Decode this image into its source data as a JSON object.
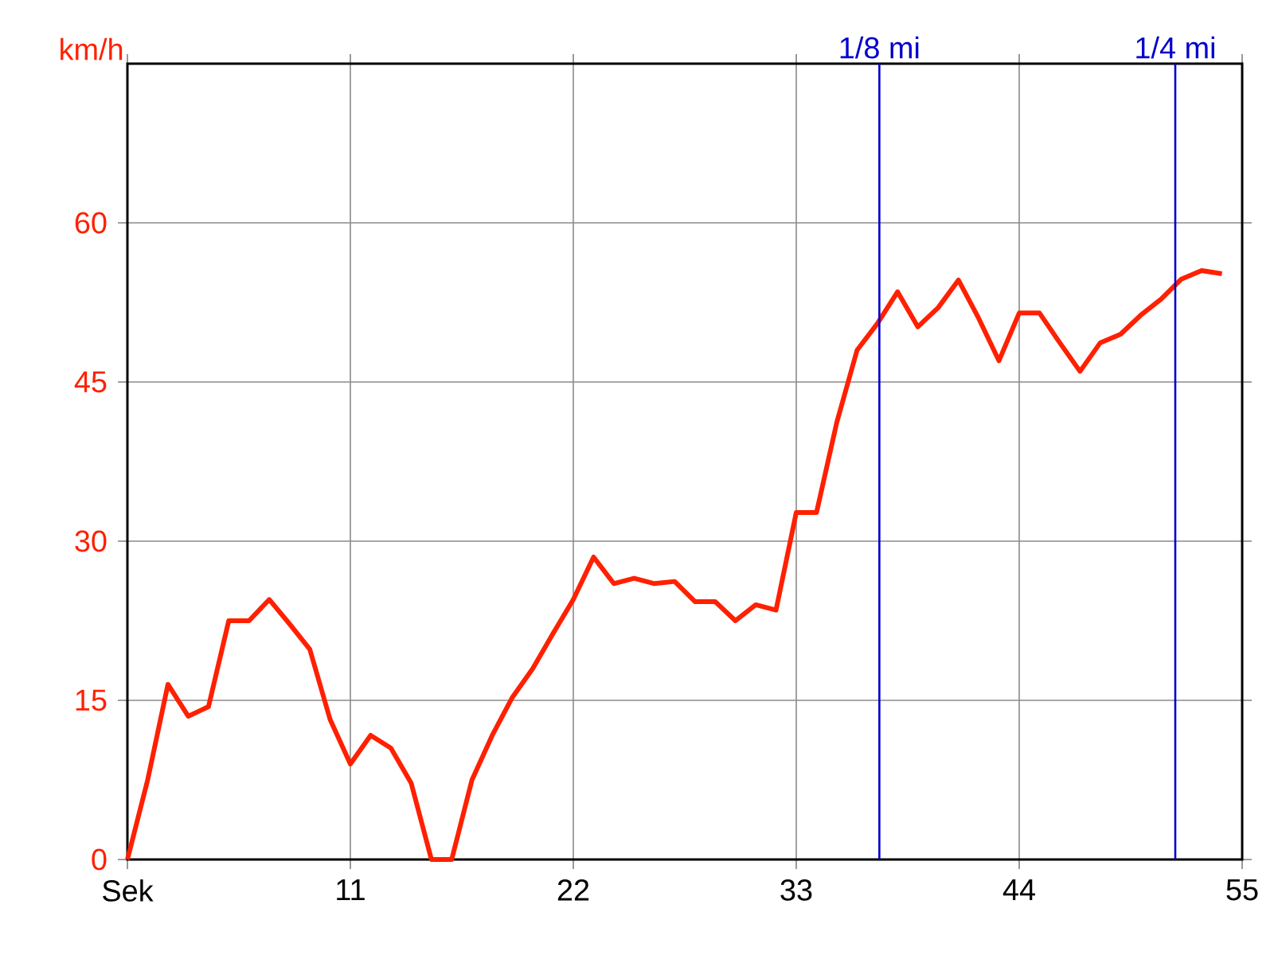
{
  "chart_data": {
    "type": "line",
    "ylabel": "km/h",
    "x": [
      0,
      1,
      2,
      3,
      4,
      5,
      6,
      7,
      8,
      9,
      10,
      11,
      12,
      13,
      14,
      15,
      16,
      17,
      18,
      19,
      20,
      21,
      22,
      23,
      24,
      25,
      26,
      27,
      28,
      29,
      30,
      31,
      32,
      33,
      34,
      35,
      36,
      37,
      38,
      39,
      40,
      41,
      42,
      43,
      44,
      45,
      46,
      47,
      48,
      49,
      50,
      51,
      52,
      53,
      54
    ],
    "series": [
      {
        "color": "#ff2000",
        "values": [
          0,
          7.5,
          16.5,
          13.5,
          14.4,
          22.5,
          22.5,
          24.5,
          22.2,
          19.8,
          13.2,
          9,
          11.7,
          10.5,
          7.2,
          0,
          0,
          7.5,
          11.7,
          15.3,
          18,
          21.3,
          24.5,
          28.5,
          26,
          26.5,
          26,
          26.2,
          24.3,
          24.3,
          22.5,
          24,
          23.5,
          32.7,
          32.7,
          41.2,
          48,
          50.5,
          53.5,
          50.2,
          52,
          54.6,
          51,
          47,
          51.5,
          51.5,
          48.7,
          46,
          48.7,
          49.5,
          51.3,
          52.8,
          54.7,
          55.5,
          55.2
        ]
      }
    ],
    "xlim": [
      0,
      55
    ],
    "ylim": [
      0,
      75
    ],
    "xticks": [
      {
        "value": 0,
        "label": "Sek"
      },
      11,
      22,
      33,
      44,
      55
    ],
    "yticks": [
      0,
      15,
      30,
      45,
      60
    ],
    "grid": true,
    "marker": "none",
    "line_style": "solid",
    "ref_lines": [
      {
        "axis": "x",
        "value": 37.1,
        "label": "1/8 mi",
        "color": "#0000cc"
      },
      {
        "axis": "x",
        "value": 51.7,
        "label": "1/4 mi",
        "color": "#0000cc"
      }
    ]
  }
}
